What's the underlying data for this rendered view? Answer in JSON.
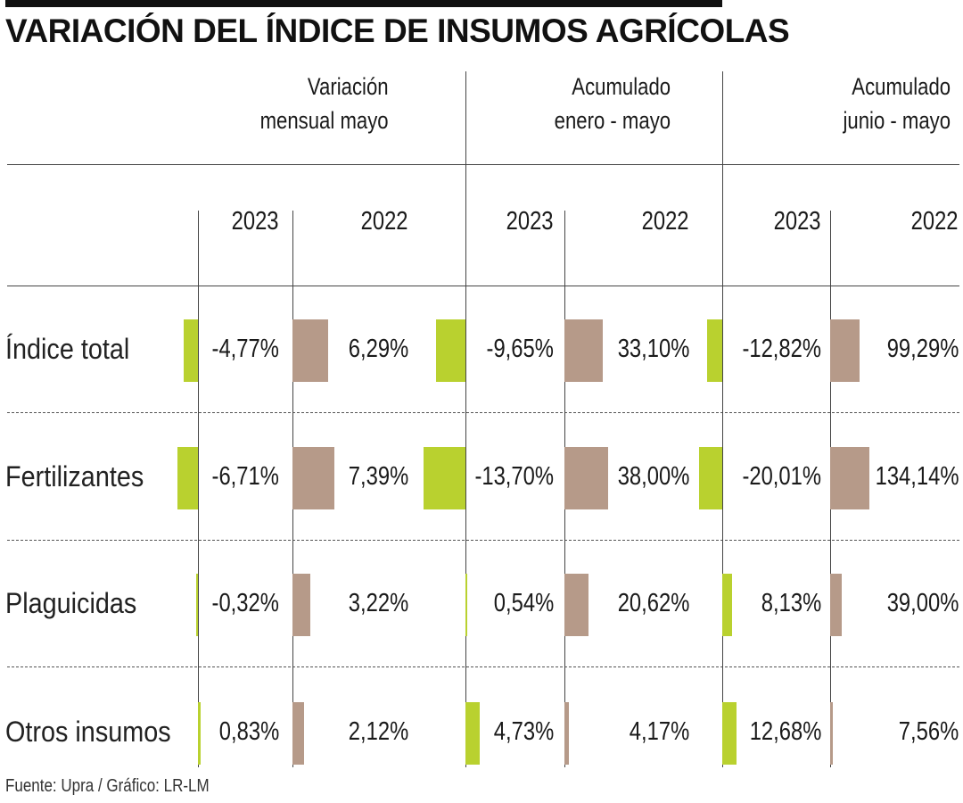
{
  "title": "VARIACIÓN DEL ÍNDICE DE INSUMOS AGRÍCOLAS",
  "source": "Fuente: Upra / Gráfico: LR-LM",
  "colors": {
    "y2023": "#b9d12f",
    "y2022": "#b69a89"
  },
  "chart_data": {
    "type": "table",
    "title": "VARIACIÓN DEL ÍNDICE DE INSUMOS AGRÍCOLAS",
    "groups": [
      {
        "key": "mensual",
        "line1": "Variación",
        "line2": "mensual mayo",
        "year_a": "2023",
        "year_b": "2022"
      },
      {
        "key": "enero",
        "line1": "Acumulado",
        "line2": "enero - mayo",
        "year_a": "2023",
        "year_b": "2022"
      },
      {
        "key": "junio",
        "line1": "Acumulado",
        "line2": "junio - mayo",
        "year_a": "2023",
        "year_b": "2022"
      }
    ],
    "rows": [
      {
        "label": "Índice total",
        "values": [
          -4.77,
          6.29,
          -9.65,
          33.1,
          -12.82,
          99.29
        ],
        "labels": [
          "-4,77%",
          "6,29%",
          "-9,65%",
          "33,10%",
          "-12,82%",
          "99,29%"
        ]
      },
      {
        "label": "Fertilizantes",
        "values": [
          -6.71,
          7.39,
          -13.7,
          38.0,
          -20.01,
          134.14
        ],
        "labels": [
          "-6,71%",
          "7,39%",
          "-13,70%",
          "38,00%",
          "-20,01%",
          "134,14%"
        ]
      },
      {
        "label": "Plaguicidas",
        "values": [
          -0.32,
          3.22,
          0.54,
          20.62,
          8.13,
          39.0
        ],
        "labels": [
          "-0,32%",
          "3,22%",
          "0,54%",
          "20,62%",
          "8,13%",
          "39,00%"
        ]
      },
      {
        "label": "Otros insumos",
        "values": [
          0.83,
          2.12,
          4.73,
          4.17,
          12.68,
          7.56
        ],
        "labels": [
          "0,83%",
          "2,12%",
          "4,73%",
          "4,17%",
          "12,68%",
          "7,56%"
        ]
      }
    ]
  }
}
